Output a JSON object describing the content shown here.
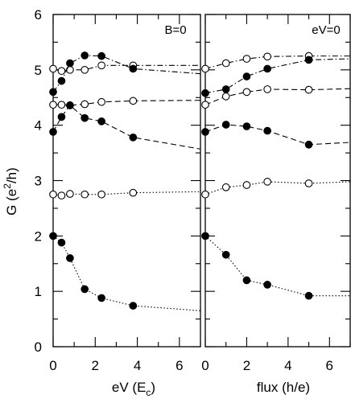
{
  "chart_data": [
    {
      "type": "line",
      "panel_label": "B=0",
      "xlabel_text": "eV",
      "xlabel_unit": "E",
      "xlabel_unit_sub": "c",
      "ylabel_text": "G",
      "ylabel_unit": "e",
      "ylabel_unit_sup": "2",
      "ylabel_unit_rest": "/h",
      "xlim": [
        0,
        7
      ],
      "ylim": [
        0,
        6
      ],
      "xticks": [
        0,
        2,
        4,
        6
      ],
      "xtick_labels": [
        "0",
        "2",
        "4",
        "6"
      ],
      "yticks": [
        0,
        1,
        2,
        3,
        4,
        5,
        6
      ],
      "ytick_labels": [
        "0",
        "1",
        "2",
        "3",
        "4",
        "5",
        "6"
      ],
      "grid": false,
      "series": [
        {
          "marker": "open",
          "dash": "dashdot",
          "x": [
            0,
            0.4,
            0.8,
            1.5,
            2.3,
            3.8
          ],
          "y": [
            5.02,
            4.98,
            5.0,
            5.0,
            5.08,
            5.08
          ],
          "tail": [
            7,
            5.08
          ]
        },
        {
          "marker": "filled",
          "dash": "dashdot",
          "x": [
            0,
            0.4,
            0.8,
            1.5,
            2.3,
            3.8
          ],
          "y": [
            4.6,
            4.8,
            5.12,
            5.26,
            5.25,
            5.02
          ],
          "tail": [
            7,
            4.93
          ]
        },
        {
          "marker": "open",
          "dash": "dashed",
          "x": [
            0,
            0.4,
            0.8,
            1.5,
            2.3,
            3.8
          ],
          "y": [
            4.37,
            4.37,
            4.36,
            4.38,
            4.42,
            4.44
          ],
          "tail": [
            7,
            4.45
          ]
        },
        {
          "marker": "filled",
          "dash": "dashed",
          "x": [
            0,
            0.4,
            0.8,
            1.5,
            2.3,
            3.8
          ],
          "y": [
            3.88,
            4.15,
            4.36,
            4.13,
            4.07,
            3.78
          ],
          "tail": [
            7,
            3.57
          ]
        },
        {
          "marker": "open",
          "dash": "dotted",
          "x": [
            0,
            0.4,
            0.8,
            1.5,
            2.3,
            3.8
          ],
          "y": [
            2.75,
            2.73,
            2.76,
            2.75,
            2.75,
            2.78
          ],
          "tail": [
            7,
            2.8
          ]
        },
        {
          "marker": "filled",
          "dash": "dotted",
          "x": [
            0,
            0.4,
            0.8,
            1.5,
            2.3,
            3.8
          ],
          "y": [
            2.0,
            1.88,
            1.6,
            1.04,
            0.88,
            0.74
          ],
          "tail": [
            7,
            0.65
          ]
        }
      ]
    },
    {
      "type": "line",
      "panel_label": "eV=0",
      "xlabel_text": "flux (h/e)",
      "xlim": [
        0,
        7
      ],
      "ylim": [
        0,
        6
      ],
      "xticks": [
        0,
        2,
        4,
        6
      ],
      "xtick_labels": [
        "0",
        "2",
        "4",
        "6"
      ],
      "yticks": [
        0,
        1,
        2,
        3,
        4,
        5,
        6
      ],
      "grid": false,
      "series": [
        {
          "marker": "open",
          "dash": "dashdot",
          "x": [
            0,
            1,
            2,
            3,
            5
          ],
          "y": [
            5.02,
            5.12,
            5.2,
            5.24,
            5.25
          ],
          "tail": [
            7,
            5.25
          ]
        },
        {
          "marker": "filled",
          "dash": "dashdot",
          "x": [
            0,
            1,
            2,
            3,
            5
          ],
          "y": [
            4.58,
            4.65,
            4.88,
            5.02,
            5.18
          ],
          "tail": [
            7,
            5.2
          ]
        },
        {
          "marker": "open",
          "dash": "dashed",
          "x": [
            0,
            1,
            2,
            3,
            5
          ],
          "y": [
            4.37,
            4.52,
            4.6,
            4.65,
            4.64
          ],
          "tail": [
            7,
            4.66
          ]
        },
        {
          "marker": "filled",
          "dash": "dashed",
          "x": [
            0,
            1,
            2,
            3,
            5
          ],
          "y": [
            3.88,
            4.01,
            3.98,
            3.9,
            3.65
          ],
          "tail": [
            7,
            3.69
          ]
        },
        {
          "marker": "open",
          "dash": "dotted",
          "x": [
            0,
            1,
            2,
            3,
            5
          ],
          "y": [
            2.75,
            2.88,
            2.92,
            2.98,
            2.95
          ],
          "tail": [
            7,
            2.98
          ]
        },
        {
          "marker": "filled",
          "dash": "dotted",
          "x": [
            0,
            1,
            2,
            3,
            5
          ],
          "y": [
            2.0,
            1.66,
            1.2,
            1.12,
            0.92
          ],
          "tail": [
            7,
            0.92
          ]
        }
      ]
    }
  ]
}
